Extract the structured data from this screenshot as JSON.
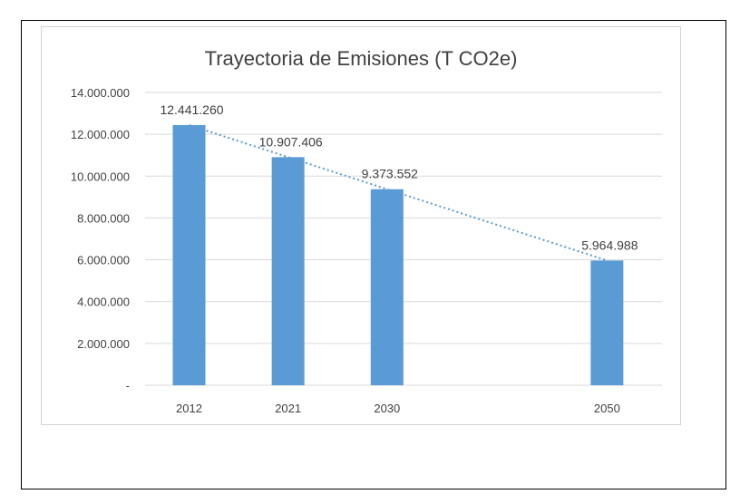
{
  "chart_data": {
    "type": "bar",
    "title": "Trayectoria de Emisiones (T CO2e)",
    "xlabel": "",
    "ylabel": "",
    "categories": [
      "2012",
      "2021",
      "2030",
      "2050"
    ],
    "x_positions": [
      2012,
      2021,
      2030,
      2050
    ],
    "values": [
      12441260,
      10907406,
      9373552,
      5964988
    ],
    "data_labels": [
      "12.441.260",
      "10.907.406",
      "9.373.552",
      "5.964.988"
    ],
    "ylim": [
      0,
      14000000
    ],
    "yticks": [
      0,
      2000000,
      4000000,
      6000000,
      8000000,
      10000000,
      12000000,
      14000000
    ],
    "ytick_labels": [
      "-",
      "2.000.000",
      "4.000.000",
      "6.000.000",
      "8.000.000",
      "10.000.000",
      "12.000.000",
      "14.000.000"
    ],
    "trendline": {
      "type": "linear",
      "style": "dotted"
    },
    "grid": true,
    "legend": "none",
    "colors": {
      "bar": "#5b9bd5",
      "trendline": "#5b9bd5",
      "grid": "#d9d9d9",
      "text": "#404040"
    }
  }
}
